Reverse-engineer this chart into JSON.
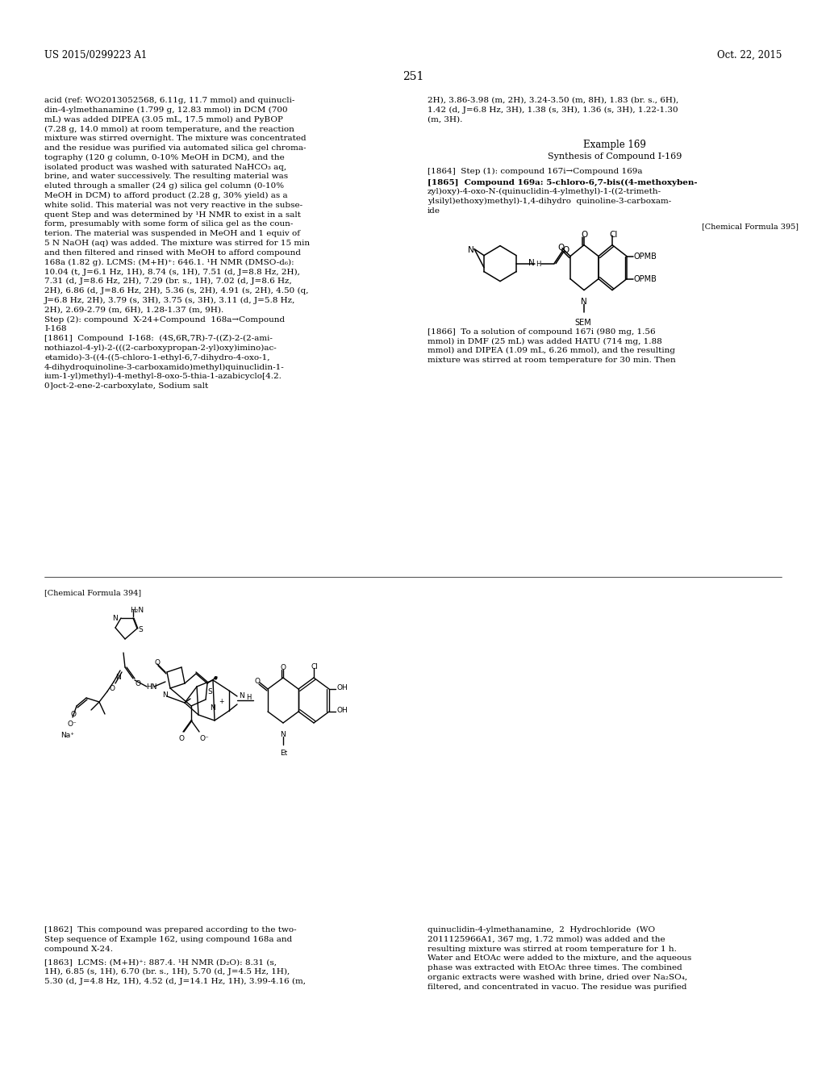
{
  "page_number": "251",
  "patent_number": "US 2015/0299223 A1",
  "patent_date": "Oct. 22, 2015",
  "background_color": "#ffffff",
  "text_color": "#000000",
  "font_size_body": 7.5,
  "font_size_header": 8.5,
  "font_size_page_num": 10,
  "left_col_text": [
    "acid (ref: WO2013052568, 6.11g, 11.7 mmol) and quinucli-",
    "din-4-ylmethanamine (1.799 g, 12.83 mmol) in DCM (700",
    "mL) was added DIPEA (3.05 mL, 17.5 mmol) and PyBOP",
    "(7.28 g, 14.0 mmol) at room temperature, and the reaction",
    "mixture was stirred overnight. The mixture was concentrated",
    "and the residue was purified via automated silica gel chroma-",
    "tography (120 g column, 0-10% MeOH in DCM), and the",
    "isolated product was washed with saturated NaHCO₃ aq,",
    "brine, and water successively. The resulting material was",
    "eluted through a smaller (24 g) silica gel column (0-10%",
    "MeOH in DCM) to afford product (2.28 g, 30% yield) as a",
    "white solid. This material was not very reactive in the subse-",
    "quent Step and was determined by ¹H NMR to exist in a salt",
    "form, presumably with some form of silica gel as the coun-",
    "terion. The material was suspended in MeOH and 1 equiv of",
    "5 N NaOH (aq) was added. The mixture was stirred for 15 min",
    "and then filtered and rinsed with MeOH to afford compound",
    "168a (1.82 g). LCMS: (M+H)⁺: 646.1. ¹H NMR (DMSO-d₆):",
    "10.04 (t, J=6.1 Hz, 1H), 8.74 (s, 1H), 7.51 (d, J=8.8 Hz, 2H),",
    "7.31 (d, J=8.6 Hz, 2H), 7.29 (br. s., 1H), 7.02 (d, J=8.6 Hz,",
    "2H), 6.86 (d, J=8.6 Hz, 2H), 5.36 (s, 2H), 4.91 (s, 2H), 4.50 (q,",
    "J=6.8 Hz, 2H), 3.79 (s, 3H), 3.75 (s, 3H), 3.11 (d, J=5.8 Hz,",
    "2H), 2.69-2.79 (m, 6H), 1.28-1.37 (m, 9H).",
    "Step (2): compound  X-24+Compound  168a→Compound",
    "I-168",
    "[1861]  Compound  I-168:  (4S,6R,7R)-7-((Z)-2-(2-ami-",
    "nothiazol-4-yl)-2-(((2-carboxypropan-2-yl)oxy)imino)ac-",
    "etamido)-3-((4-((5-chloro-1-ethyl-6,7-dihydro-4-oxo-1,",
    "4-dihydroquinoline-3-carboxamido)methyl)quinuclidin-1-",
    "ium-1-yl)methyl)-4-methyl-8-oxo-5-thia-1-azabicyclo[4.2.",
    "0]oct-2-ene-2-carboxylate, Sodium salt"
  ],
  "right_col_text_top": [
    "2H), 3.86-3.98 (m, 2H), 3.24-3.50 (m, 8H), 1.83 (br. s., 6H),",
    "1.42 (d, J=6.8 Hz, 3H), 1.38 (s, 3H), 1.36 (s, 3H), 1.22-1.30",
    "(m, 3H)."
  ],
  "example_169_title": "Example 169",
  "example_169_subtitle": "Synthesis of Compound I-169",
  "step1864": "[1864]  Step (1): compound 167i→Compound 169a",
  "step1865_title": "[1865]  Compound 169a: 5-chloro-6,7-bis((4-methoxyben-",
  "step1865_lines": [
    "zyl)oxy)-4-oxo-N-(quinuclidin-4-ylmethyl)-1-((2-trimeth-",
    "ylsilyl)ethoxy)methyl)-1,4-dihydro  quinoline-3-carboxam-",
    "ide"
  ],
  "chem_formula_395": "[Chemical Formula 395]",
  "step1866_title": "[1866]  To a solution of compound 167i (980 mg, 1.56",
  "step1866_lines": [
    "mmol) in DMF (25 mL) was added HATU (714 mg, 1.88",
    "mmol) and DIPEA (1.09 mL, 6.26 mmol), and the resulting",
    "mixture was stirred at room temperature for 30 min. Then"
  ],
  "chem_formula_394": "[Chemical Formula 394]",
  "bottom_left_text": [
    "[1862]  This compound was prepared according to the two-",
    "Step sequence of Example 162, using compound 168a and",
    "compound X-24."
  ],
  "bottom_right_text": [
    "quinuclidin-4-ylmethanamine,  2  Hydrochloride  (WO",
    "2011125966A1, 367 mg, 1.72 mmol) was added and the",
    "resulting mixture was stirred at room temperature for 1 h.",
    "Water and EtOAc were added to the mixture, and the aqueous",
    "phase was extracted with EtOAc three times. The combined",
    "organic extracts were washed with brine, dried over Na₂SO₄,",
    "filtered, and concentrated in vacuo. The residue was purified"
  ],
  "step1863_text": "[1863]  LCMS: (M+H)⁺: 887.4. ¹H NMR (D₂O): 8.31 (s,",
  "step1863_lines": [
    "1H), 6.85 (s, 1H), 6.70 (br. s., 1H), 5.70 (d, J=4.5 Hz, 1H),",
    "5.30 (d, J=4.8 Hz, 1H), 4.52 (d, J=14.1 Hz, 1H), 3.99-4.16 (m,"
  ]
}
